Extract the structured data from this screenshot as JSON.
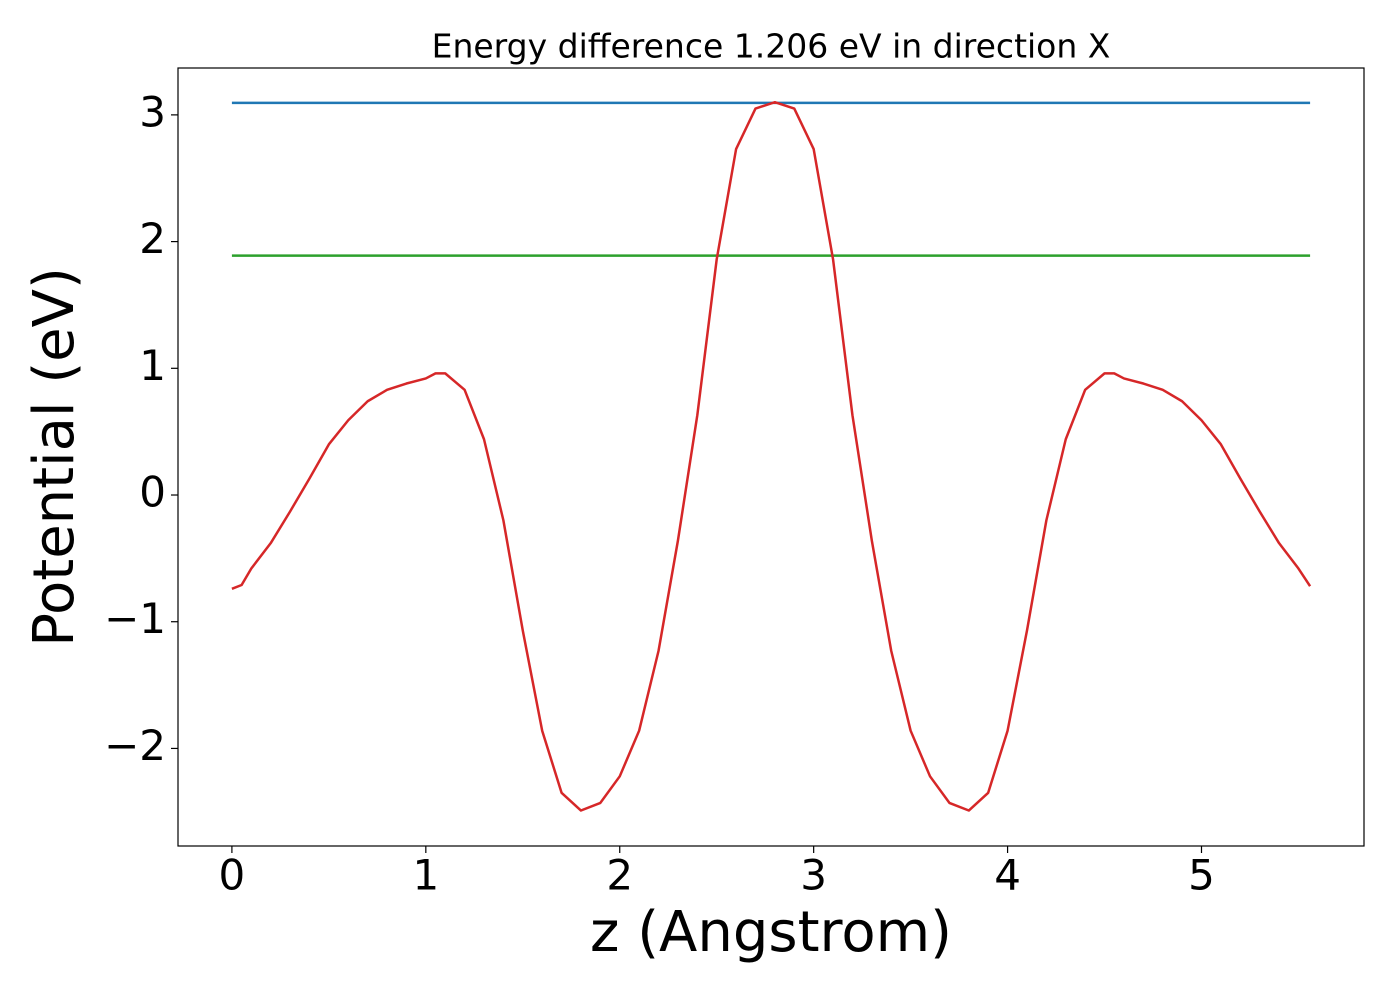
{
  "chart_data": {
    "type": "line",
    "title": "Energy difference 1.206 eV in direction X",
    "x_label": "z (Angstrom)",
    "y_label": "Potential (eV)",
    "xlim": [
      -0.278,
      5.838
    ],
    "ylim": [
      -2.77,
      3.37
    ],
    "xticks": [
      0,
      1,
      2,
      3,
      4,
      5
    ],
    "yticks": [
      {
        "value": -2,
        "label": "−2"
      },
      {
        "value": -1,
        "label": "−1"
      },
      0,
      1,
      2,
      3
    ],
    "series": [
      {
        "color": "#1f77b4",
        "x": [
          0,
          5.56
        ],
        "values": [
          3.095,
          3.095
        ]
      },
      {
        "color": "#2ca02c",
        "x": [
          0,
          5.56
        ],
        "values": [
          1.889,
          1.889
        ]
      },
      {
        "color": "#d62728",
        "x": [
          0,
          0.05,
          0.1,
          0.2,
          0.3,
          0.4,
          0.5,
          0.6,
          0.7,
          0.8,
          0.9,
          1.0,
          1.05,
          1.1,
          1.2,
          1.3,
          1.4,
          1.5,
          1.6,
          1.7,
          1.8,
          1.9,
          2.0,
          2.1,
          2.2,
          2.3,
          2.4,
          2.5,
          2.6,
          2.7,
          2.8,
          2.9,
          3.0,
          3.1,
          3.2,
          3.3,
          3.4,
          3.5,
          3.6,
          3.7,
          3.8,
          3.9,
          4.0,
          4.1,
          4.2,
          4.3,
          4.4,
          4.5,
          4.55,
          4.6,
          4.7,
          4.8,
          4.9,
          5.0,
          5.1,
          5.2,
          5.3,
          5.4,
          5.5,
          5.56
        ],
        "values": [
          -0.74,
          -0.71,
          -0.58,
          -0.38,
          -0.13,
          0.13,
          0.4,
          0.59,
          0.74,
          0.83,
          0.88,
          0.92,
          0.96,
          0.96,
          0.83,
          0.44,
          -0.2,
          -1.07,
          -1.86,
          -2.35,
          -2.49,
          -2.43,
          -2.22,
          -1.86,
          -1.23,
          -0.36,
          0.63,
          1.86,
          2.73,
          3.05,
          3.1,
          3.05,
          2.73,
          1.86,
          0.63,
          -0.36,
          -1.23,
          -1.86,
          -2.22,
          -2.43,
          -2.49,
          -2.35,
          -1.86,
          -1.07,
          -0.2,
          0.44,
          0.83,
          0.96,
          0.96,
          0.92,
          0.88,
          0.83,
          0.74,
          0.59,
          0.4,
          0.13,
          -0.13,
          -0.38,
          -0.58,
          -0.72
        ]
      }
    ]
  }
}
